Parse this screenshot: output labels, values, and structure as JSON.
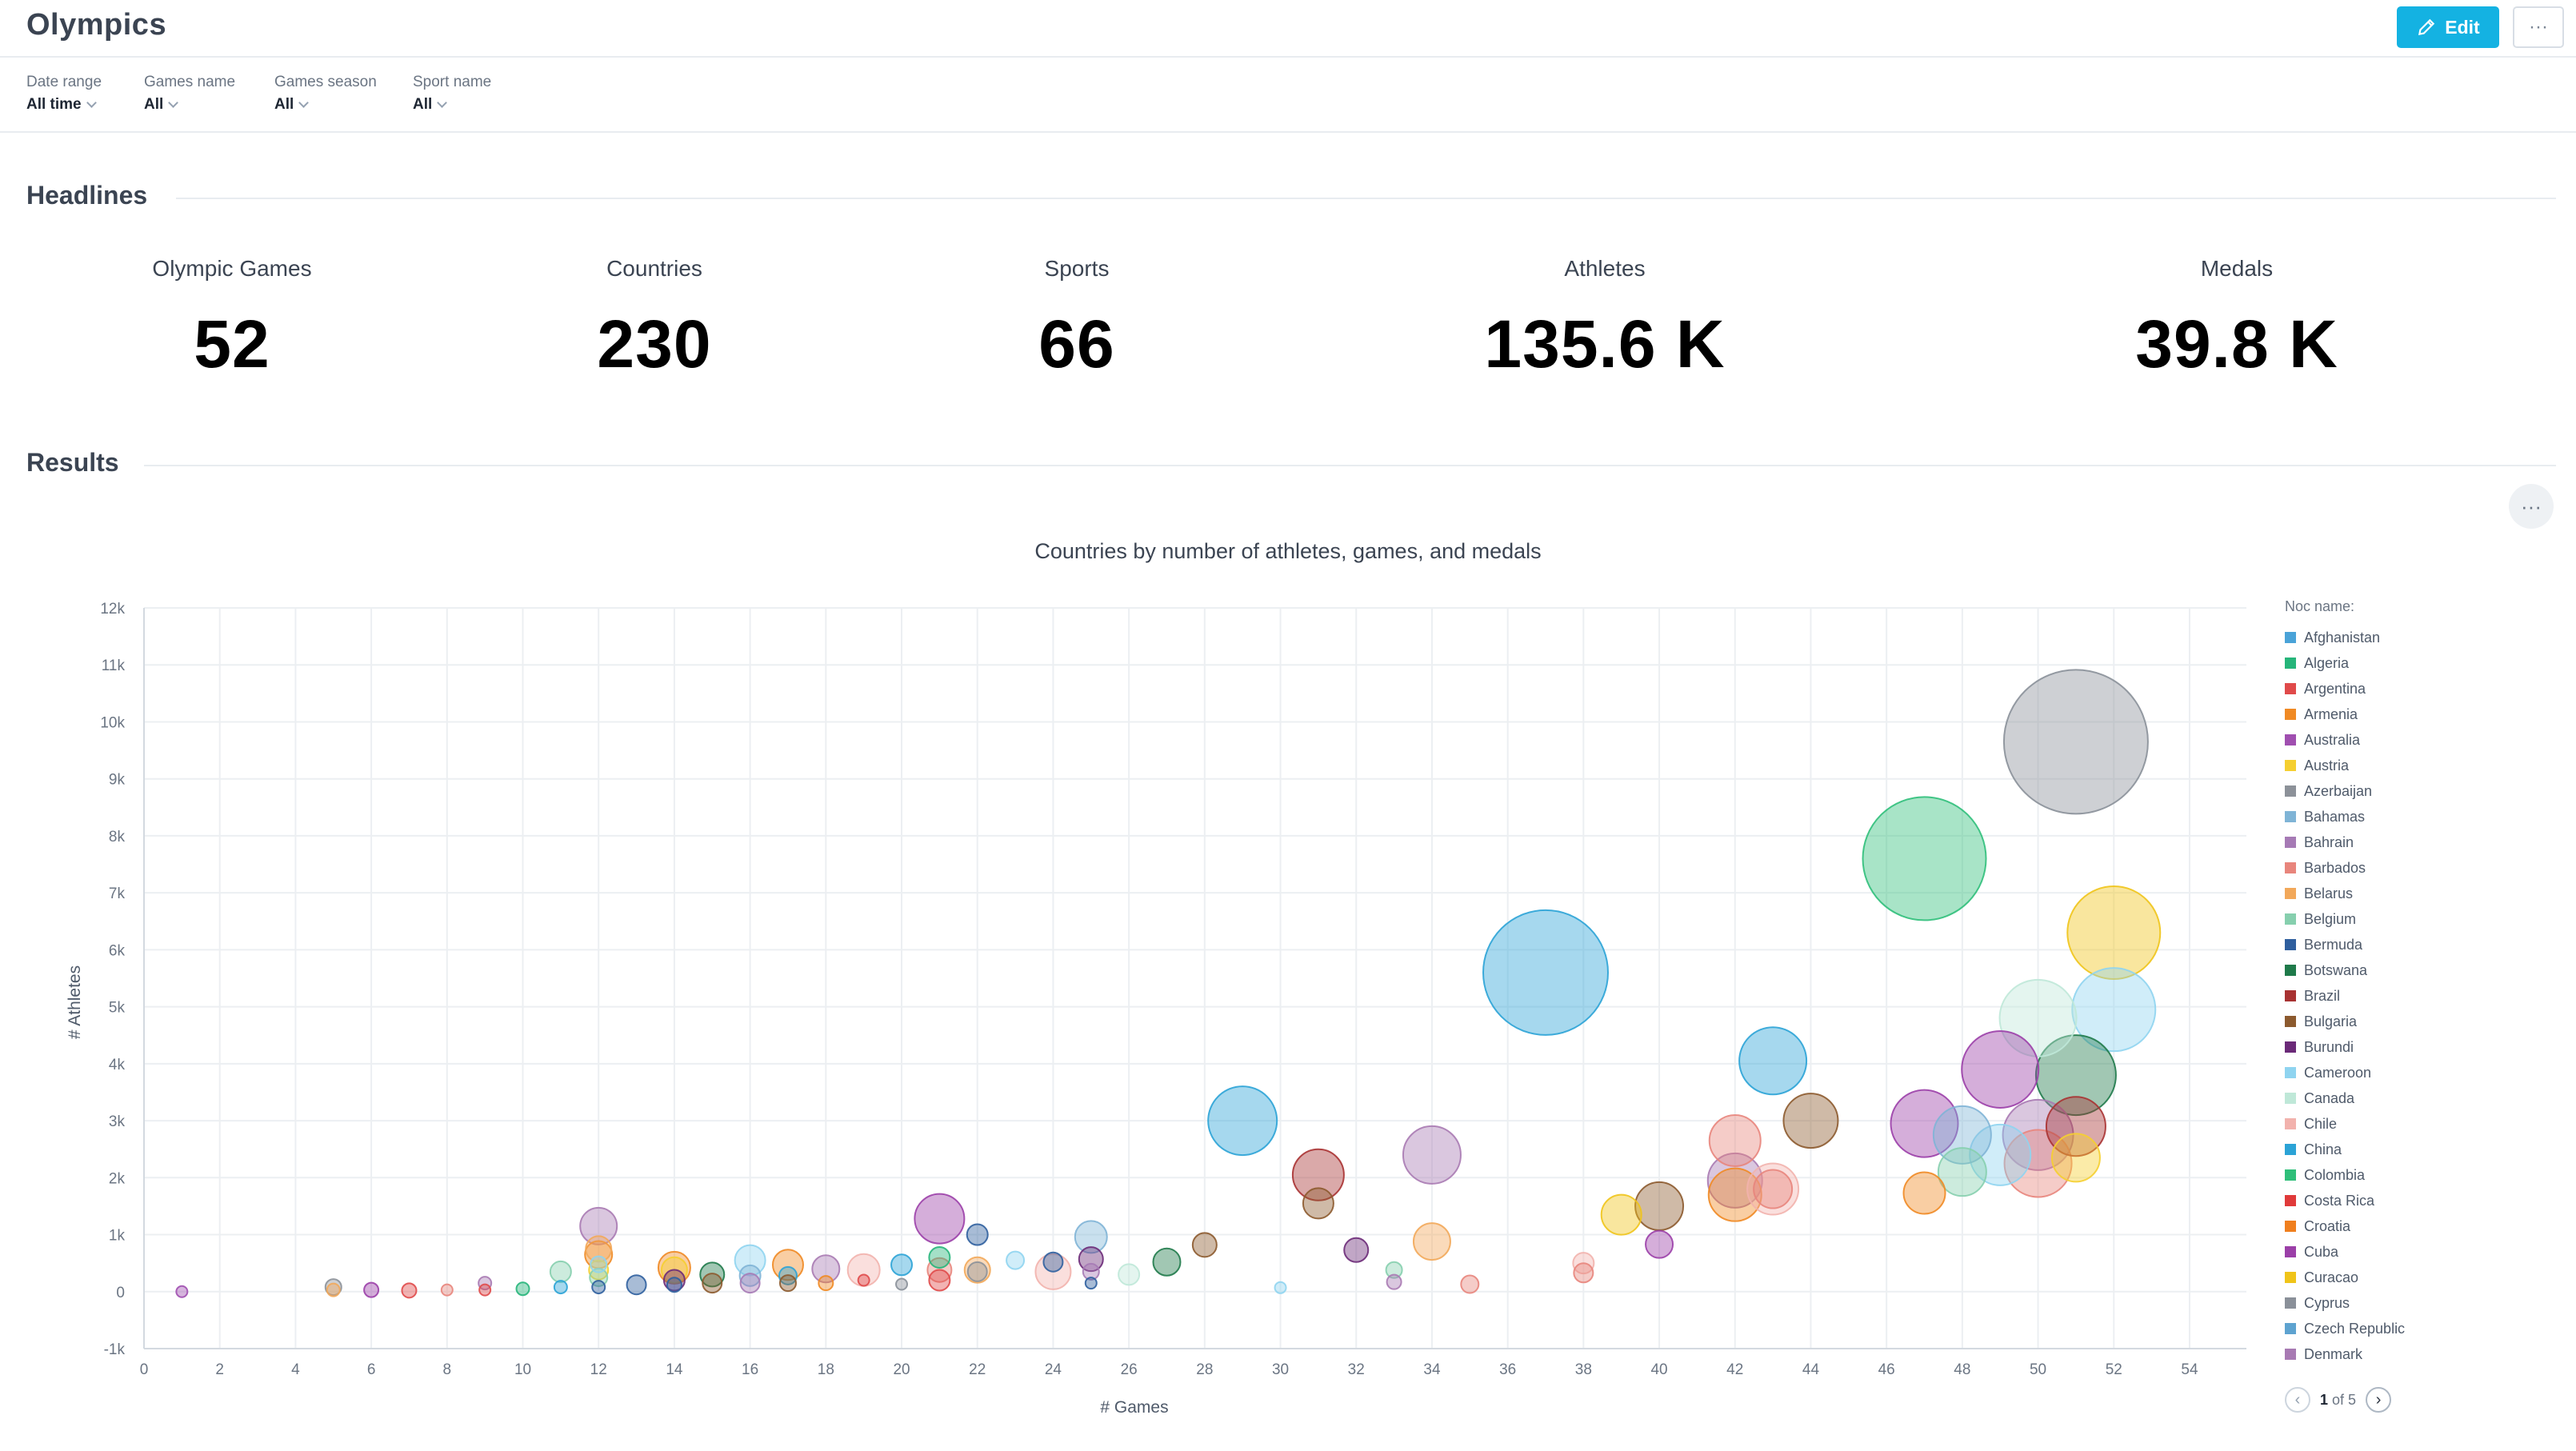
{
  "header": {
    "title": "Olympics",
    "edit_label": "Edit",
    "more_label": "···"
  },
  "filters": [
    {
      "label": "Date range",
      "value": "All time"
    },
    {
      "label": "Games name",
      "value": "All"
    },
    {
      "label": "Games season",
      "value": "All"
    },
    {
      "label": "Sport name",
      "value": "All"
    }
  ],
  "headlines": {
    "title": "Headlines",
    "kpis": [
      {
        "label": "Olympic Games",
        "value": "52"
      },
      {
        "label": "Countries",
        "value": "230"
      },
      {
        "label": "Sports",
        "value": "66"
      },
      {
        "label": "Athletes",
        "value": "135.6 K"
      },
      {
        "label": "Medals",
        "value": "39.8 K"
      }
    ]
  },
  "results": {
    "title": "Results",
    "more_label": "···"
  },
  "legend": {
    "title": "Noc name:",
    "items": [
      {
        "name": "Afghanistan",
        "color": "#4aa3d8"
      },
      {
        "name": "Algeria",
        "color": "#26b57a"
      },
      {
        "name": "Argentina",
        "color": "#e04a4a"
      },
      {
        "name": "Armenia",
        "color": "#f08a24"
      },
      {
        "name": "Australia",
        "color": "#a04fb0"
      },
      {
        "name": "Austria",
        "color": "#f5cf30"
      },
      {
        "name": "Azerbaijan",
        "color": "#8c9199"
      },
      {
        "name": "Bahamas",
        "color": "#7fb4d6"
      },
      {
        "name": "Bahrain",
        "color": "#a67ab5"
      },
      {
        "name": "Barbados",
        "color": "#e8857c"
      },
      {
        "name": "Belarus",
        "color": "#f2a85a"
      },
      {
        "name": "Belgium",
        "color": "#86cfae"
      },
      {
        "name": "Bermuda",
        "color": "#2f5f9e"
      },
      {
        "name": "Botswana",
        "color": "#1f7a4a"
      },
      {
        "name": "Brazil",
        "color": "#a83232"
      },
      {
        "name": "Bulgaria",
        "color": "#8c5a2e"
      },
      {
        "name": "Burundi",
        "color": "#6b2a78"
      },
      {
        "name": "Cameroon",
        "color": "#8fd4f0"
      },
      {
        "name": "Canada",
        "color": "#bfe8d8"
      },
      {
        "name": "Chile",
        "color": "#f2b2ad"
      },
      {
        "name": "China",
        "color": "#2ba3d6"
      },
      {
        "name": "Colombia",
        "color": "#2fbf7a"
      },
      {
        "name": "Costa Rica",
        "color": "#e03a3a"
      },
      {
        "name": "Croatia",
        "color": "#f07f1e"
      },
      {
        "name": "Cuba",
        "color": "#9b3fa8"
      },
      {
        "name": "Curacao",
        "color": "#f0c419"
      },
      {
        "name": "Cyprus",
        "color": "#8a9099"
      },
      {
        "name": "Czech Republic",
        "color": "#5ea3d0"
      },
      {
        "name": "Denmark",
        "color": "#a87ab3"
      }
    ],
    "page": "1",
    "page_of": "of 5"
  },
  "chart_data": {
    "type": "scatter",
    "subtype": "bubble",
    "title": "Countries by number of athletes, games, and medals",
    "xlabel": "# Games",
    "ylabel": "# Athletes",
    "xlim": [
      0,
      55.5
    ],
    "ylim": [
      -1000,
      12000
    ],
    "xticks": [
      0,
      2,
      4,
      6,
      8,
      10,
      12,
      14,
      16,
      18,
      20,
      22,
      24,
      26,
      28,
      30,
      32,
      34,
      36,
      38,
      40,
      42,
      44,
      46,
      48,
      50,
      52,
      54
    ],
    "yticks": [
      -1000,
      0,
      1000,
      2000,
      3000,
      4000,
      5000,
      6000,
      7000,
      8000,
      9000,
      10000,
      11000,
      12000
    ],
    "ytick_labels": [
      "-1k",
      "0",
      "1k",
      "2k",
      "3k",
      "4k",
      "5k",
      "6k",
      "7k",
      "8k",
      "9k",
      "10k",
      "11k",
      "12k"
    ],
    "grid": true,
    "legend_position": "right",
    "size_metric": "medals",
    "points": [
      {
        "x": 51,
        "y": 9650,
        "r": 90,
        "c": "#8a9099"
      },
      {
        "x": 47,
        "y": 7600,
        "r": 77,
        "c": "#2fbf7a"
      },
      {
        "x": 37,
        "y": 5600,
        "r": 78,
        "c": "#2ba3d6"
      },
      {
        "x": 52,
        "y": 6300,
        "r": 58,
        "c": "#f0c419"
      },
      {
        "x": 52,
        "y": 4950,
        "r": 52,
        "c": "#8fd4f0"
      },
      {
        "x": 50,
        "y": 4800,
        "r": 48,
        "c": "#bfe8d8"
      },
      {
        "x": 51,
        "y": 3800,
        "r": 50,
        "c": "#1f7a4a"
      },
      {
        "x": 49,
        "y": 3900,
        "r": 48,
        "c": "#9b3fa8"
      },
      {
        "x": 47,
        "y": 2950,
        "r": 42,
        "c": "#9b3fa8"
      },
      {
        "x": 43,
        "y": 4050,
        "r": 42,
        "c": "#2ba3d6"
      },
      {
        "x": 51,
        "y": 2900,
        "r": 37,
        "c": "#a83232"
      },
      {
        "x": 50,
        "y": 2750,
        "r": 44,
        "c": "#a87ab3"
      },
      {
        "x": 48,
        "y": 2750,
        "r": 36,
        "c": "#7fb4d6"
      },
      {
        "x": 49,
        "y": 2400,
        "r": 38,
        "c": "#8fd4f0"
      },
      {
        "x": 50,
        "y": 2250,
        "r": 42,
        "c": "#e8857c"
      },
      {
        "x": 48,
        "y": 2100,
        "r": 30,
        "c": "#86cfae"
      },
      {
        "x": 51,
        "y": 2350,
        "r": 30,
        "c": "#f5cf30"
      },
      {
        "x": 44,
        "y": 3000,
        "r": 34,
        "c": "#8c5a2e"
      },
      {
        "x": 29,
        "y": 3000,
        "r": 43,
        "c": "#2ba3d6"
      },
      {
        "x": 31,
        "y": 2050,
        "r": 32,
        "c": "#a83232"
      },
      {
        "x": 31,
        "y": 1550,
        "r": 19,
        "c": "#8c5a2e"
      },
      {
        "x": 34,
        "y": 2400,
        "r": 36,
        "c": "#a87ab3"
      },
      {
        "x": 42,
        "y": 2650,
        "r": 32,
        "c": "#e8857c"
      },
      {
        "x": 42,
        "y": 1950,
        "r": 34,
        "c": "#a87ab3"
      },
      {
        "x": 42,
        "y": 1700,
        "r": 33,
        "c": "#f08a24"
      },
      {
        "x": 43,
        "y": 1800,
        "r": 32,
        "c": "#f2b2ad"
      },
      {
        "x": 43,
        "y": 1800,
        "r": 24,
        "c": "#e8857c"
      },
      {
        "x": 47,
        "y": 1730,
        "r": 26,
        "c": "#f08a24"
      },
      {
        "x": 40,
        "y": 1500,
        "r": 30,
        "c": "#8c5a2e"
      },
      {
        "x": 39,
        "y": 1350,
        "r": 25,
        "c": "#f0c419"
      },
      {
        "x": 40,
        "y": 830,
        "r": 17,
        "c": "#9b3fa8"
      },
      {
        "x": 38,
        "y": 500,
        "r": 13,
        "c": "#f2b2ad"
      },
      {
        "x": 38,
        "y": 330,
        "r": 12,
        "c": "#e8857c"
      },
      {
        "x": 34,
        "y": 880,
        "r": 23,
        "c": "#f2a85a"
      },
      {
        "x": 35,
        "y": 130,
        "r": 11,
        "c": "#e8857c"
      },
      {
        "x": 33,
        "y": 380,
        "r": 10,
        "c": "#86cfae"
      },
      {
        "x": 33,
        "y": 170,
        "r": 9,
        "c": "#a87ab3"
      },
      {
        "x": 32,
        "y": 730,
        "r": 15,
        "c": "#6b2a78"
      },
      {
        "x": 30,
        "y": 70,
        "r": 7,
        "c": "#8fd4f0"
      },
      {
        "x": 28,
        "y": 820,
        "r": 15,
        "c": "#8c5a2e"
      },
      {
        "x": 27,
        "y": 520,
        "r": 17,
        "c": "#1f7a4a"
      },
      {
        "x": 26,
        "y": 300,
        "r": 13,
        "c": "#bfe8d8"
      },
      {
        "x": 25,
        "y": 960,
        "r": 20,
        "c": "#7fb4d6"
      },
      {
        "x": 25,
        "y": 570,
        "r": 15,
        "c": "#6b2a78"
      },
      {
        "x": 25,
        "y": 350,
        "r": 10,
        "c": "#a67ab5"
      },
      {
        "x": 25,
        "y": 150,
        "r": 7,
        "c": "#2f5f9e"
      },
      {
        "x": 24,
        "y": 520,
        "r": 12,
        "c": "#2f5f9e"
      },
      {
        "x": 24,
        "y": 350,
        "r": 22,
        "c": "#f2b2ad"
      },
      {
        "x": 23,
        "y": 550,
        "r": 11,
        "c": "#8fd4f0"
      },
      {
        "x": 22,
        "y": 1000,
        "r": 13,
        "c": "#2f5f9e"
      },
      {
        "x": 22,
        "y": 380,
        "r": 16,
        "c": "#f2a85a"
      },
      {
        "x": 22,
        "y": 350,
        "r": 12,
        "c": "#8c9199"
      },
      {
        "x": 21,
        "y": 1280,
        "r": 31,
        "c": "#9b3fa8"
      },
      {
        "x": 21,
        "y": 600,
        "r": 13,
        "c": "#26b57a"
      },
      {
        "x": 21,
        "y": 380,
        "r": 15,
        "c": "#e8857c"
      },
      {
        "x": 21,
        "y": 200,
        "r": 13,
        "c": "#e04a4a"
      },
      {
        "x": 20,
        "y": 470,
        "r": 13,
        "c": "#2ba3d6"
      },
      {
        "x": 20,
        "y": 130,
        "r": 7,
        "c": "#8a9099"
      },
      {
        "x": 19,
        "y": 380,
        "r": 20,
        "c": "#f2b2ad"
      },
      {
        "x": 19,
        "y": 200,
        "r": 7,
        "c": "#e04a4a"
      },
      {
        "x": 18,
        "y": 400,
        "r": 17,
        "c": "#a87ab3"
      },
      {
        "x": 18,
        "y": 150,
        "r": 9,
        "c": "#f08a24"
      },
      {
        "x": 17,
        "y": 470,
        "r": 19,
        "c": "#f08a24"
      },
      {
        "x": 17,
        "y": 280,
        "r": 11,
        "c": "#2ba3d6"
      },
      {
        "x": 17,
        "y": 150,
        "r": 10,
        "c": "#8c5a2e"
      },
      {
        "x": 16,
        "y": 550,
        "r": 19,
        "c": "#8fd4f0"
      },
      {
        "x": 16,
        "y": 280,
        "r": 13,
        "c": "#7fb4d6"
      },
      {
        "x": 16,
        "y": 150,
        "r": 12,
        "c": "#a67ab5"
      },
      {
        "x": 15,
        "y": 300,
        "r": 15,
        "c": "#1f7a4a"
      },
      {
        "x": 15,
        "y": 150,
        "r": 12,
        "c": "#8c5a2e"
      },
      {
        "x": 14,
        "y": 420,
        "r": 20,
        "c": "#f08a24"
      },
      {
        "x": 14,
        "y": 380,
        "r": 16,
        "c": "#f5cf30"
      },
      {
        "x": 14,
        "y": 200,
        "r": 13,
        "c": "#6b2a78"
      },
      {
        "x": 14,
        "y": 120,
        "r": 9,
        "c": "#2f5f9e"
      },
      {
        "x": 13,
        "y": 120,
        "r": 12,
        "c": "#2f5f9e"
      },
      {
        "x": 12,
        "y": 1150,
        "r": 23,
        "c": "#a87ab3"
      },
      {
        "x": 12,
        "y": 750,
        "r": 16,
        "c": "#f2a85a"
      },
      {
        "x": 12,
        "y": 650,
        "r": 17,
        "c": "#f08a24"
      },
      {
        "x": 12,
        "y": 480,
        "r": 10,
        "c": "#8fd4f0"
      },
      {
        "x": 12,
        "y": 380,
        "r": 12,
        "c": "#f5cf30"
      },
      {
        "x": 12,
        "y": 250,
        "r": 11,
        "c": "#86cfae"
      },
      {
        "x": 12,
        "y": 80,
        "r": 8,
        "c": "#2f5f9e"
      },
      {
        "x": 11,
        "y": 350,
        "r": 13,
        "c": "#86cfae"
      },
      {
        "x": 11,
        "y": 80,
        "r": 8,
        "c": "#2ba3d6"
      },
      {
        "x": 10,
        "y": 50,
        "r": 8,
        "c": "#26b57a"
      },
      {
        "x": 9,
        "y": 150,
        "r": 8,
        "c": "#a87ab3"
      },
      {
        "x": 9,
        "y": 30,
        "r": 7,
        "c": "#e04a4a"
      },
      {
        "x": 8,
        "y": 30,
        "r": 7,
        "c": "#e8857c"
      },
      {
        "x": 7,
        "y": 20,
        "r": 9,
        "c": "#e04a4a"
      },
      {
        "x": 6,
        "y": 30,
        "r": 9,
        "c": "#9b3fa8"
      },
      {
        "x": 5,
        "y": 80,
        "r": 10,
        "c": "#8c9199"
      },
      {
        "x": 5,
        "y": 30,
        "r": 8,
        "c": "#f2a85a"
      },
      {
        "x": 1,
        "y": 0,
        "r": 7,
        "c": "#a04fb0"
      }
    ]
  }
}
